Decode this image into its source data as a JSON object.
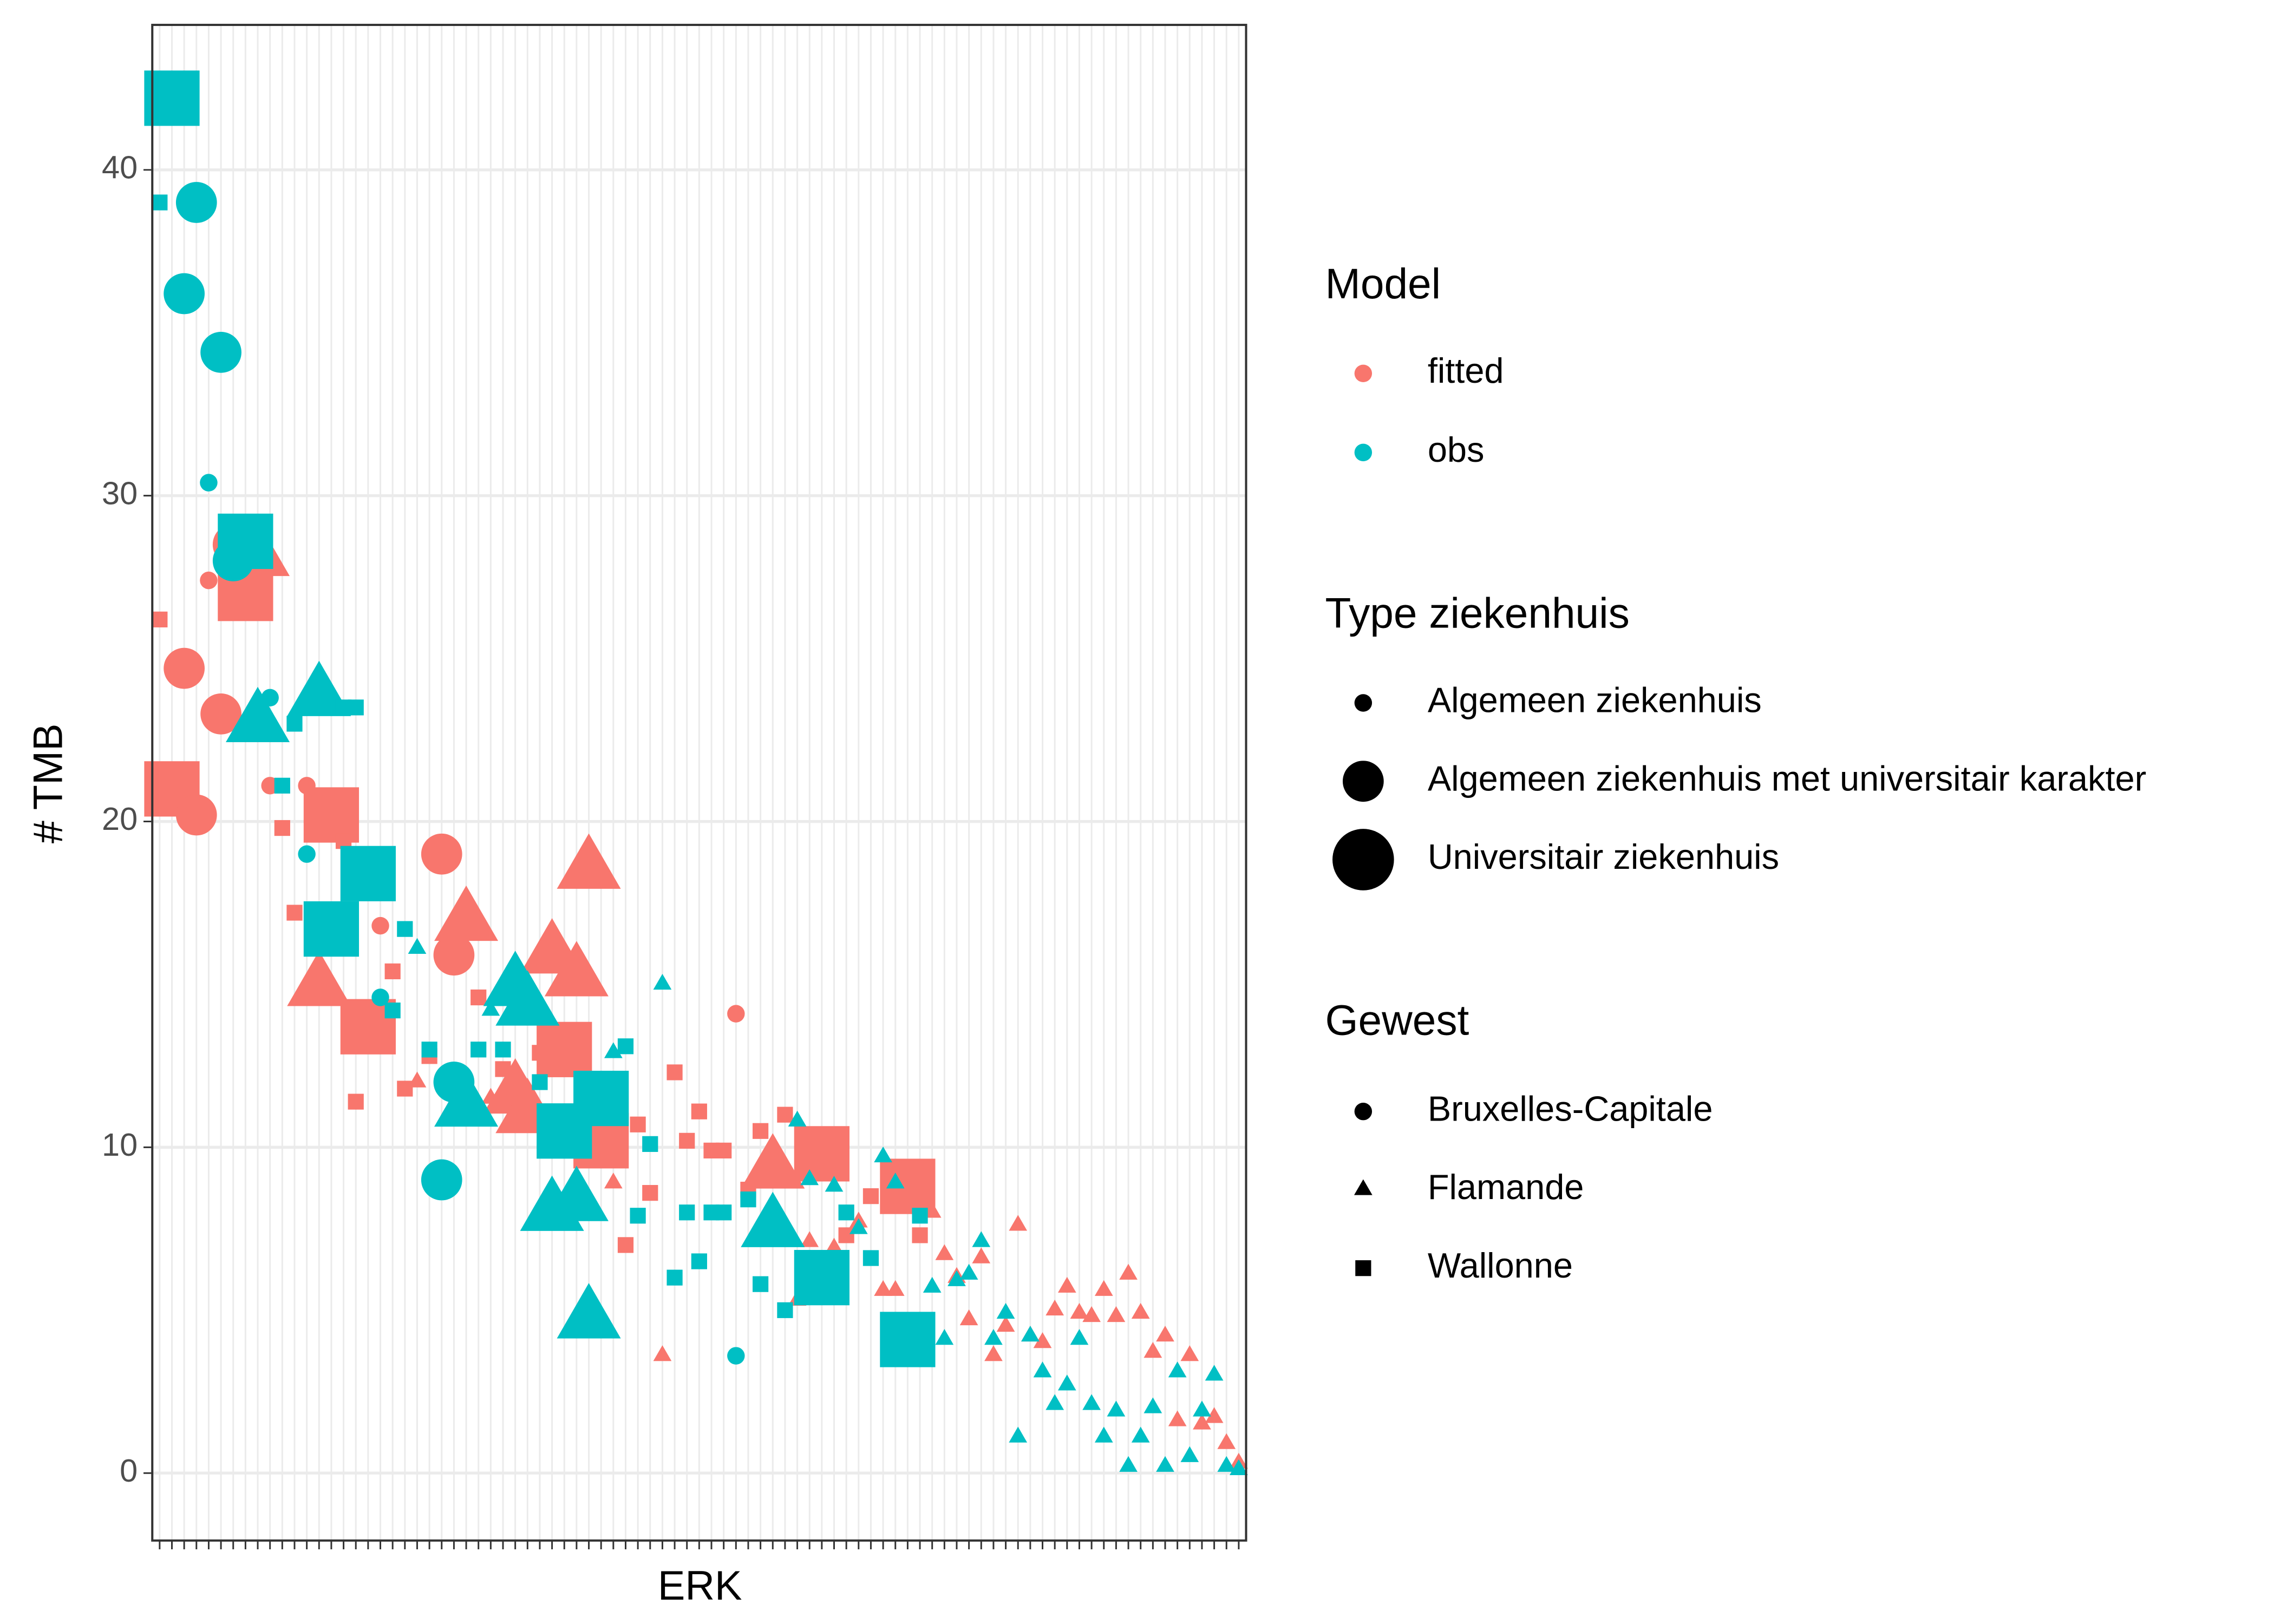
{
  "chart_data": {
    "type": "scatter",
    "x_label": "ERK",
    "y_label": "# TMB",
    "categories": [
      null,
      null,
      null,
      null,
      null,
      null,
      null,
      null,
      null,
      null,
      null,
      null,
      null,
      null,
      null,
      null,
      null,
      null,
      null,
      null,
      null,
      null,
      null,
      null,
      null,
      null,
      null,
      null,
      null,
      null,
      null,
      null,
      null,
      null,
      null,
      null,
      null,
      null,
      null,
      null,
      null,
      null,
      null,
      null,
      null,
      null,
      null,
      null,
      null,
      null,
      null,
      null,
      null,
      null,
      null,
      null,
      null,
      null,
      null,
      null,
      null,
      null,
      null,
      null,
      null,
      null,
      null,
      null,
      null,
      null,
      null,
      null,
      null,
      null,
      null,
      null,
      null,
      null,
      null,
      null,
      null,
      null,
      null,
      null,
      null,
      null,
      null,
      null,
      null
    ],
    "series": [
      {
        "name": "fitted",
        "color": "#F8766D",
        "values": [
          26.2,
          21.0,
          24.7,
          20.2,
          27.4,
          23.3,
          28.5,
          27.0,
          28.1,
          21.1,
          19.8,
          17.2,
          21.1,
          14.9,
          20.2,
          19.4,
          11.4,
          13.7,
          16.8,
          15.4,
          11.8,
          12.0,
          12.8,
          19.0,
          15.9,
          16.9,
          14.6,
          11.5,
          12.4,
          11.6,
          11.0,
          12.9,
          15.9,
          13.0,
          15.2,
          18.5,
          10.2,
          8.9,
          7.0,
          10.7,
          8.6,
          3.6,
          12.3,
          10.2,
          11.1,
          9.9,
          9.9,
          14.1,
          8.7,
          10.5,
          9.3,
          11.0,
          5.3,
          7.1,
          9.8,
          6.9,
          7.3,
          7.7,
          8.5,
          5.6,
          5.6,
          8.8,
          7.3,
          8.0,
          6.7,
          6.0,
          4.7,
          6.6,
          3.6,
          4.5,
          7.6,
          4.2,
          4.0,
          5.0,
          5.7,
          4.9,
          4.8,
          5.6,
          4.8,
          6.1,
          4.9,
          3.7,
          4.2,
          1.6,
          3.6,
          1.5,
          1.7,
          0.9,
          0.3
        ]
      },
      {
        "name": "obs",
        "color": "#00BFC4",
        "values": [
          39.0,
          42.2,
          36.2,
          39.0,
          30.4,
          34.4,
          28.0,
          28.6,
          23.0,
          23.8,
          21.1,
          23.0,
          19.0,
          23.8,
          16.7,
          23.5,
          23.5,
          18.4,
          14.6,
          14.2,
          16.7,
          16.1,
          13.0,
          9.0,
          12.0,
          11.2,
          13.0,
          14.2,
          13.0,
          14.9,
          14.3,
          12.0,
          8.0,
          10.5,
          8.3,
          4.7,
          11.5,
          12.9,
          13.1,
          7.9,
          10.1,
          15.0,
          6.0,
          8.0,
          6.5,
          8.0,
          8.0,
          3.6,
          8.4,
          5.8,
          7.5,
          5.0,
          10.8,
          9.0,
          6.0,
          8.8,
          8.0,
          7.5,
          6.6,
          9.7,
          8.9,
          4.1,
          7.9,
          5.7,
          4.1,
          5.9,
          6.1,
          7.1,
          4.1,
          4.9,
          1.1,
          4.2,
          3.1,
          2.1,
          2.7,
          4.1,
          2.1,
          1.1,
          1.9,
          0.2,
          1.1,
          2.0,
          0.2,
          3.1,
          0.5,
          1.9,
          3.0,
          0.2,
          0.1
        ]
      }
    ],
    "hospital_type": [
      "Algemeen ziekenhuis",
      "Universitair ziekenhuis",
      "Algemeen ziekenhuis met universitair karakter",
      "Algemeen ziekenhuis met universitair karakter",
      "Algemeen ziekenhuis",
      "Algemeen ziekenhuis met universitair karakter",
      "Algemeen ziekenhuis met universitair karakter",
      "Universitair ziekenhuis",
      "Universitair ziekenhuis",
      "Algemeen ziekenhuis",
      "Algemeen ziekenhuis",
      "Algemeen ziekenhuis",
      "Algemeen ziekenhuis",
      "Universitair ziekenhuis",
      "Universitair ziekenhuis",
      "Algemeen ziekenhuis",
      "Algemeen ziekenhuis",
      "Universitair ziekenhuis",
      "Algemeen ziekenhuis",
      "Algemeen ziekenhuis",
      "Algemeen ziekenhuis",
      "Algemeen ziekenhuis",
      "Algemeen ziekenhuis",
      "Algemeen ziekenhuis met universitair karakter",
      "Algemeen ziekenhuis met universitair karakter",
      "Universitair ziekenhuis",
      "Algemeen ziekenhuis",
      "Algemeen ziekenhuis",
      "Algemeen ziekenhuis",
      "Universitair ziekenhuis",
      "Universitair ziekenhuis",
      "Algemeen ziekenhuis",
      "Universitair ziekenhuis",
      "Universitair ziekenhuis",
      "Universitair ziekenhuis",
      "Universitair ziekenhuis",
      "Universitair ziekenhuis",
      "Algemeen ziekenhuis",
      "Algemeen ziekenhuis",
      "Algemeen ziekenhuis",
      "Algemeen ziekenhuis",
      "Algemeen ziekenhuis",
      "Algemeen ziekenhuis",
      "Algemeen ziekenhuis",
      "Algemeen ziekenhuis",
      "Algemeen ziekenhuis",
      "Algemeen ziekenhuis",
      "Algemeen ziekenhuis",
      "Algemeen ziekenhuis",
      "Algemeen ziekenhuis",
      "Universitair ziekenhuis",
      "Algemeen ziekenhuis",
      "Algemeen ziekenhuis",
      "Algemeen ziekenhuis",
      "Universitair ziekenhuis",
      "Algemeen ziekenhuis",
      "Algemeen ziekenhuis",
      "Algemeen ziekenhuis",
      "Algemeen ziekenhuis",
      "Algemeen ziekenhuis",
      "Algemeen ziekenhuis",
      "Universitair ziekenhuis",
      "Algemeen ziekenhuis",
      "Algemeen ziekenhuis",
      "Algemeen ziekenhuis",
      "Algemeen ziekenhuis",
      "Algemeen ziekenhuis",
      "Algemeen ziekenhuis",
      "Algemeen ziekenhuis",
      "Algemeen ziekenhuis",
      "Algemeen ziekenhuis",
      "Algemeen ziekenhuis",
      "Algemeen ziekenhuis",
      "Algemeen ziekenhuis",
      "Algemeen ziekenhuis",
      "Algemeen ziekenhuis",
      "Algemeen ziekenhuis",
      "Algemeen ziekenhuis",
      "Algemeen ziekenhuis",
      "Algemeen ziekenhuis",
      "Algemeen ziekenhuis",
      "Algemeen ziekenhuis",
      "Algemeen ziekenhuis",
      "Algemeen ziekenhuis",
      "Algemeen ziekenhuis",
      "Algemeen ziekenhuis",
      "Algemeen ziekenhuis",
      "Algemeen ziekenhuis",
      "Algemeen ziekenhuis"
    ],
    "region": [
      "Wallonne",
      "Wallonne",
      "Bruxelles-Capitale",
      "Bruxelles-Capitale",
      "Bruxelles-Capitale",
      "Bruxelles-Capitale",
      "Bruxelles-Capitale",
      "Wallonne",
      "Flamande",
      "Bruxelles-Capitale",
      "Wallonne",
      "Wallonne",
      "Bruxelles-Capitale",
      "Flamande",
      "Wallonne",
      "Wallonne",
      "Wallonne",
      "Wallonne",
      "Bruxelles-Capitale",
      "Wallonne",
      "Wallonne",
      "Flamande",
      "Wallonne",
      "Bruxelles-Capitale",
      "Bruxelles-Capitale",
      "Flamande",
      "Wallonne",
      "Flamande",
      "Wallonne",
      "Flamande",
      "Flamande",
      "Wallonne",
      "Flamande",
      "Wallonne",
      "Flamande",
      "Flamande",
      "Wallonne",
      "Flamande",
      "Wallonne",
      "Wallonne",
      "Wallonne",
      "Flamande",
      "Wallonne",
      "Wallonne",
      "Wallonne",
      "Wallonne",
      "Wallonne",
      "Bruxelles-Capitale",
      "Wallonne",
      "Wallonne",
      "Flamande",
      "Wallonne",
      "Flamande",
      "Flamande",
      "Wallonne",
      "Flamande",
      "Wallonne",
      "Flamande",
      "Wallonne",
      "Flamande",
      "Flamande",
      "Wallonne",
      "Wallonne",
      "Flamande",
      "Flamande",
      "Flamande",
      "Flamande",
      "Flamande",
      "Flamande",
      "Flamande",
      "Flamande",
      "Flamande",
      "Flamande",
      "Flamande",
      "Flamande",
      "Flamande",
      "Flamande",
      "Flamande",
      "Flamande",
      "Flamande",
      "Flamande",
      "Flamande",
      "Flamande",
      "Flamande",
      "Flamande",
      "Flamande",
      "Flamande",
      "Flamande",
      "Flamande"
    ],
    "legends": [
      {
        "title": "Model"
      },
      {
        "title": "Type ziekenhuis",
        "labels": [
          "Algemeen ziekenhuis",
          "Algemeen ziekenhuis met universitair karakter",
          "Universitair ziekenhuis"
        ]
      },
      {
        "title": "Gewest",
        "labels": [
          "Bruxelles-Capitale",
          "Flamande",
          "Wallonne"
        ]
      }
    ],
    "ylim": [
      -2.07,
      44.45
    ],
    "yticks": [
      0,
      10,
      20,
      30,
      40
    ],
    "grid": true
  }
}
